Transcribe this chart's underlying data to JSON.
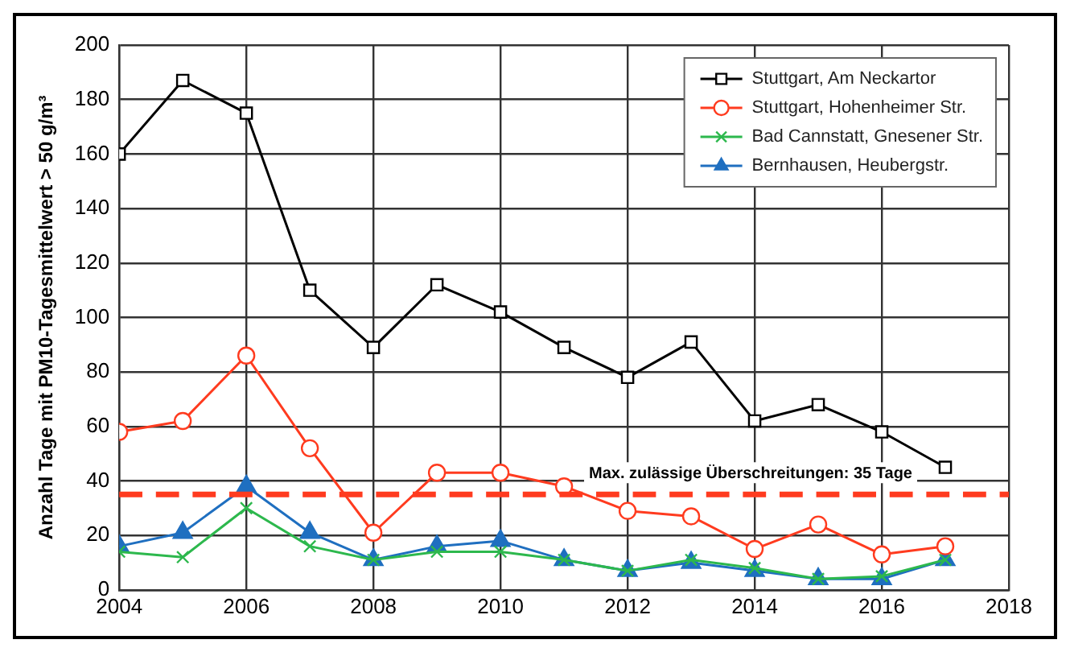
{
  "chart_data": {
    "type": "line",
    "ylabel": "Anzahl Tage mit PM10-Tagesmittelwert > 50 g/m³",
    "x": [
      2004,
      2005,
      2006,
      2007,
      2008,
      2009,
      2010,
      2011,
      2012,
      2013,
      2014,
      2015,
      2016,
      2017
    ],
    "xlim": [
      2004,
      2018
    ],
    "xticks": [
      2004,
      2006,
      2008,
      2010,
      2012,
      2014,
      2016,
      2018
    ],
    "ylim": [
      0,
      200
    ],
    "yticks": [
      0,
      20,
      40,
      60,
      80,
      100,
      120,
      140,
      160,
      180,
      200
    ],
    "grid": true,
    "legend": "top right",
    "series": [
      {
        "name": "Stuttgart, Am Neckartor",
        "color": "#000000",
        "marker": "square",
        "values": [
          160,
          187,
          175,
          110,
          89,
          112,
          102,
          89,
          78,
          91,
          62,
          68,
          58,
          45
        ]
      },
      {
        "name": "Stuttgart, Hohenheimer Str.",
        "color": "#ff3b1f",
        "marker": "circle",
        "values": [
          58,
          62,
          86,
          52,
          21,
          43,
          43,
          38,
          29,
          27,
          15,
          24,
          13,
          16
        ]
      },
      {
        "name": "Bad Cannstatt, Gnesener Str.",
        "color": "#2db84d",
        "marker": "cross",
        "values": [
          14,
          12,
          30,
          16,
          11,
          14,
          14,
          11,
          7,
          11,
          8,
          4,
          5,
          11
        ]
      },
      {
        "name": "Bernhausen, Heubergstr.",
        "color": "#1f6fc0",
        "marker": "triangle",
        "values": [
          16,
          21,
          38,
          21,
          11,
          16,
          18,
          11,
          7,
          10,
          7,
          4,
          4,
          11
        ]
      }
    ],
    "ref_lines": [
      {
        "axis": "y",
        "value": 35,
        "label": "Max. zulässige Überschreitungen: 35 Tage",
        "color": "#ff3b1f",
        "line_style": "dashed"
      }
    ]
  }
}
